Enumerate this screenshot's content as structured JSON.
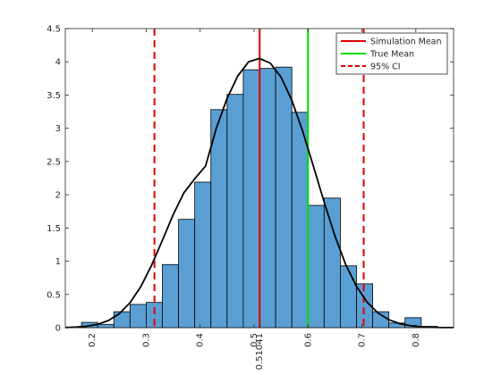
{
  "chart_data": {
    "type": "bar",
    "title": "",
    "xlabel": "",
    "ylabel": "",
    "xlim": [
      0.15,
      0.87
    ],
    "ylim": [
      0,
      4.5
    ],
    "grid": false,
    "legend_position": "top-right",
    "histogram": {
      "bin_width": 0.03,
      "bins": [
        {
          "x0": 0.18,
          "x1": 0.21,
          "value": 0.08
        },
        {
          "x0": 0.21,
          "x1": 0.24,
          "value": 0.05
        },
        {
          "x0": 0.24,
          "x1": 0.27,
          "value": 0.24
        },
        {
          "x0": 0.27,
          "x1": 0.3,
          "value": 0.35
        },
        {
          "x0": 0.3,
          "x1": 0.33,
          "value": 0.38
        },
        {
          "x0": 0.33,
          "x1": 0.36,
          "value": 0.95
        },
        {
          "x0": 0.36,
          "x1": 0.39,
          "value": 1.63
        },
        {
          "x0": 0.39,
          "x1": 0.42,
          "value": 2.19
        },
        {
          "x0": 0.42,
          "x1": 0.45,
          "value": 3.28
        },
        {
          "x0": 0.45,
          "x1": 0.48,
          "value": 3.51
        },
        {
          "x0": 0.48,
          "x1": 0.51,
          "value": 3.88
        },
        {
          "x0": 0.51,
          "x1": 0.54,
          "value": 3.9
        },
        {
          "x0": 0.54,
          "x1": 0.57,
          "value": 3.92
        },
        {
          "x0": 0.57,
          "x1": 0.6,
          "value": 3.24
        },
        {
          "x0": 0.6,
          "x1": 0.63,
          "value": 1.84
        },
        {
          "x0": 0.63,
          "x1": 0.66,
          "value": 1.95
        },
        {
          "x0": 0.66,
          "x1": 0.69,
          "value": 0.93
        },
        {
          "x0": 0.69,
          "x1": 0.72,
          "value": 0.66
        },
        {
          "x0": 0.72,
          "x1": 0.75,
          "value": 0.24
        },
        {
          "x0": 0.75,
          "x1": 0.78,
          "value": 0.07
        },
        {
          "x0": 0.78,
          "x1": 0.81,
          "value": 0.15
        },
        {
          "x0": 0.81,
          "x1": 0.84,
          "value": 0.02
        }
      ],
      "fill_color": "#5a9fd4",
      "edge_color": "#000000"
    },
    "density_curve": {
      "x": [
        0.15,
        0.17,
        0.19,
        0.21,
        0.23,
        0.25,
        0.27,
        0.29,
        0.31,
        0.33,
        0.35,
        0.37,
        0.39,
        0.41,
        0.43,
        0.45,
        0.47,
        0.49,
        0.51,
        0.53,
        0.55,
        0.57,
        0.59,
        0.61,
        0.63,
        0.65,
        0.67,
        0.69,
        0.71,
        0.73,
        0.75,
        0.77,
        0.79,
        0.81,
        0.83,
        0.85,
        0.87
      ],
      "y": [
        0.003,
        0.009,
        0.022,
        0.051,
        0.108,
        0.21,
        0.375,
        0.618,
        0.938,
        1.314,
        1.7,
        2.031,
        2.24,
        2.43,
        3.0,
        3.45,
        3.79,
        4.0,
        4.05,
        3.98,
        3.77,
        3.42,
        2.96,
        2.43,
        1.89,
        1.38,
        0.95,
        0.62,
        0.38,
        0.22,
        0.12,
        0.06,
        0.03,
        0.013,
        0.005,
        0.002,
        0.001
      ],
      "color": "#000000"
    },
    "vertical_lines": [
      {
        "name": "Simulation Mean",
        "x": 0.51041,
        "color": "#e00000",
        "style": "solid"
      },
      {
        "name": "True Mean",
        "x": 0.6,
        "color": "#00dd00",
        "style": "solid"
      },
      {
        "name": "95% CI",
        "x": 0.3153,
        "color": "#e00000",
        "style": "dashed"
      },
      {
        "name": "95% CI",
        "x": 0.7033,
        "color": "#e00000",
        "style": "dashed"
      }
    ],
    "xticks": [
      0.2,
      0.3,
      0.4,
      0.5,
      0.6,
      0.7,
      0.8
    ],
    "xtick_labels": [
      "0.2",
      "0.3",
      "0.4",
      "0.5",
      "0.6",
      "0.7",
      "0.8"
    ],
    "extra_xtick_label": {
      "x": 0.51041,
      "label": "0.51041"
    },
    "yticks": [
      0,
      0.5,
      1,
      1.5,
      2,
      2.5,
      3,
      3.5,
      4,
      4.5
    ],
    "ytick_labels": [
      "0",
      "0.5",
      "1",
      "1.5",
      "2",
      "2.5",
      "3",
      "3.5",
      "4",
      "4.5"
    ],
    "legend": [
      {
        "label": "Simulation Mean",
        "color": "#e00000",
        "style": "solid"
      },
      {
        "label": "True Mean",
        "color": "#00dd00",
        "style": "solid"
      },
      {
        "label": "95% CI",
        "color": "#e00000",
        "style": "dashed"
      }
    ]
  }
}
